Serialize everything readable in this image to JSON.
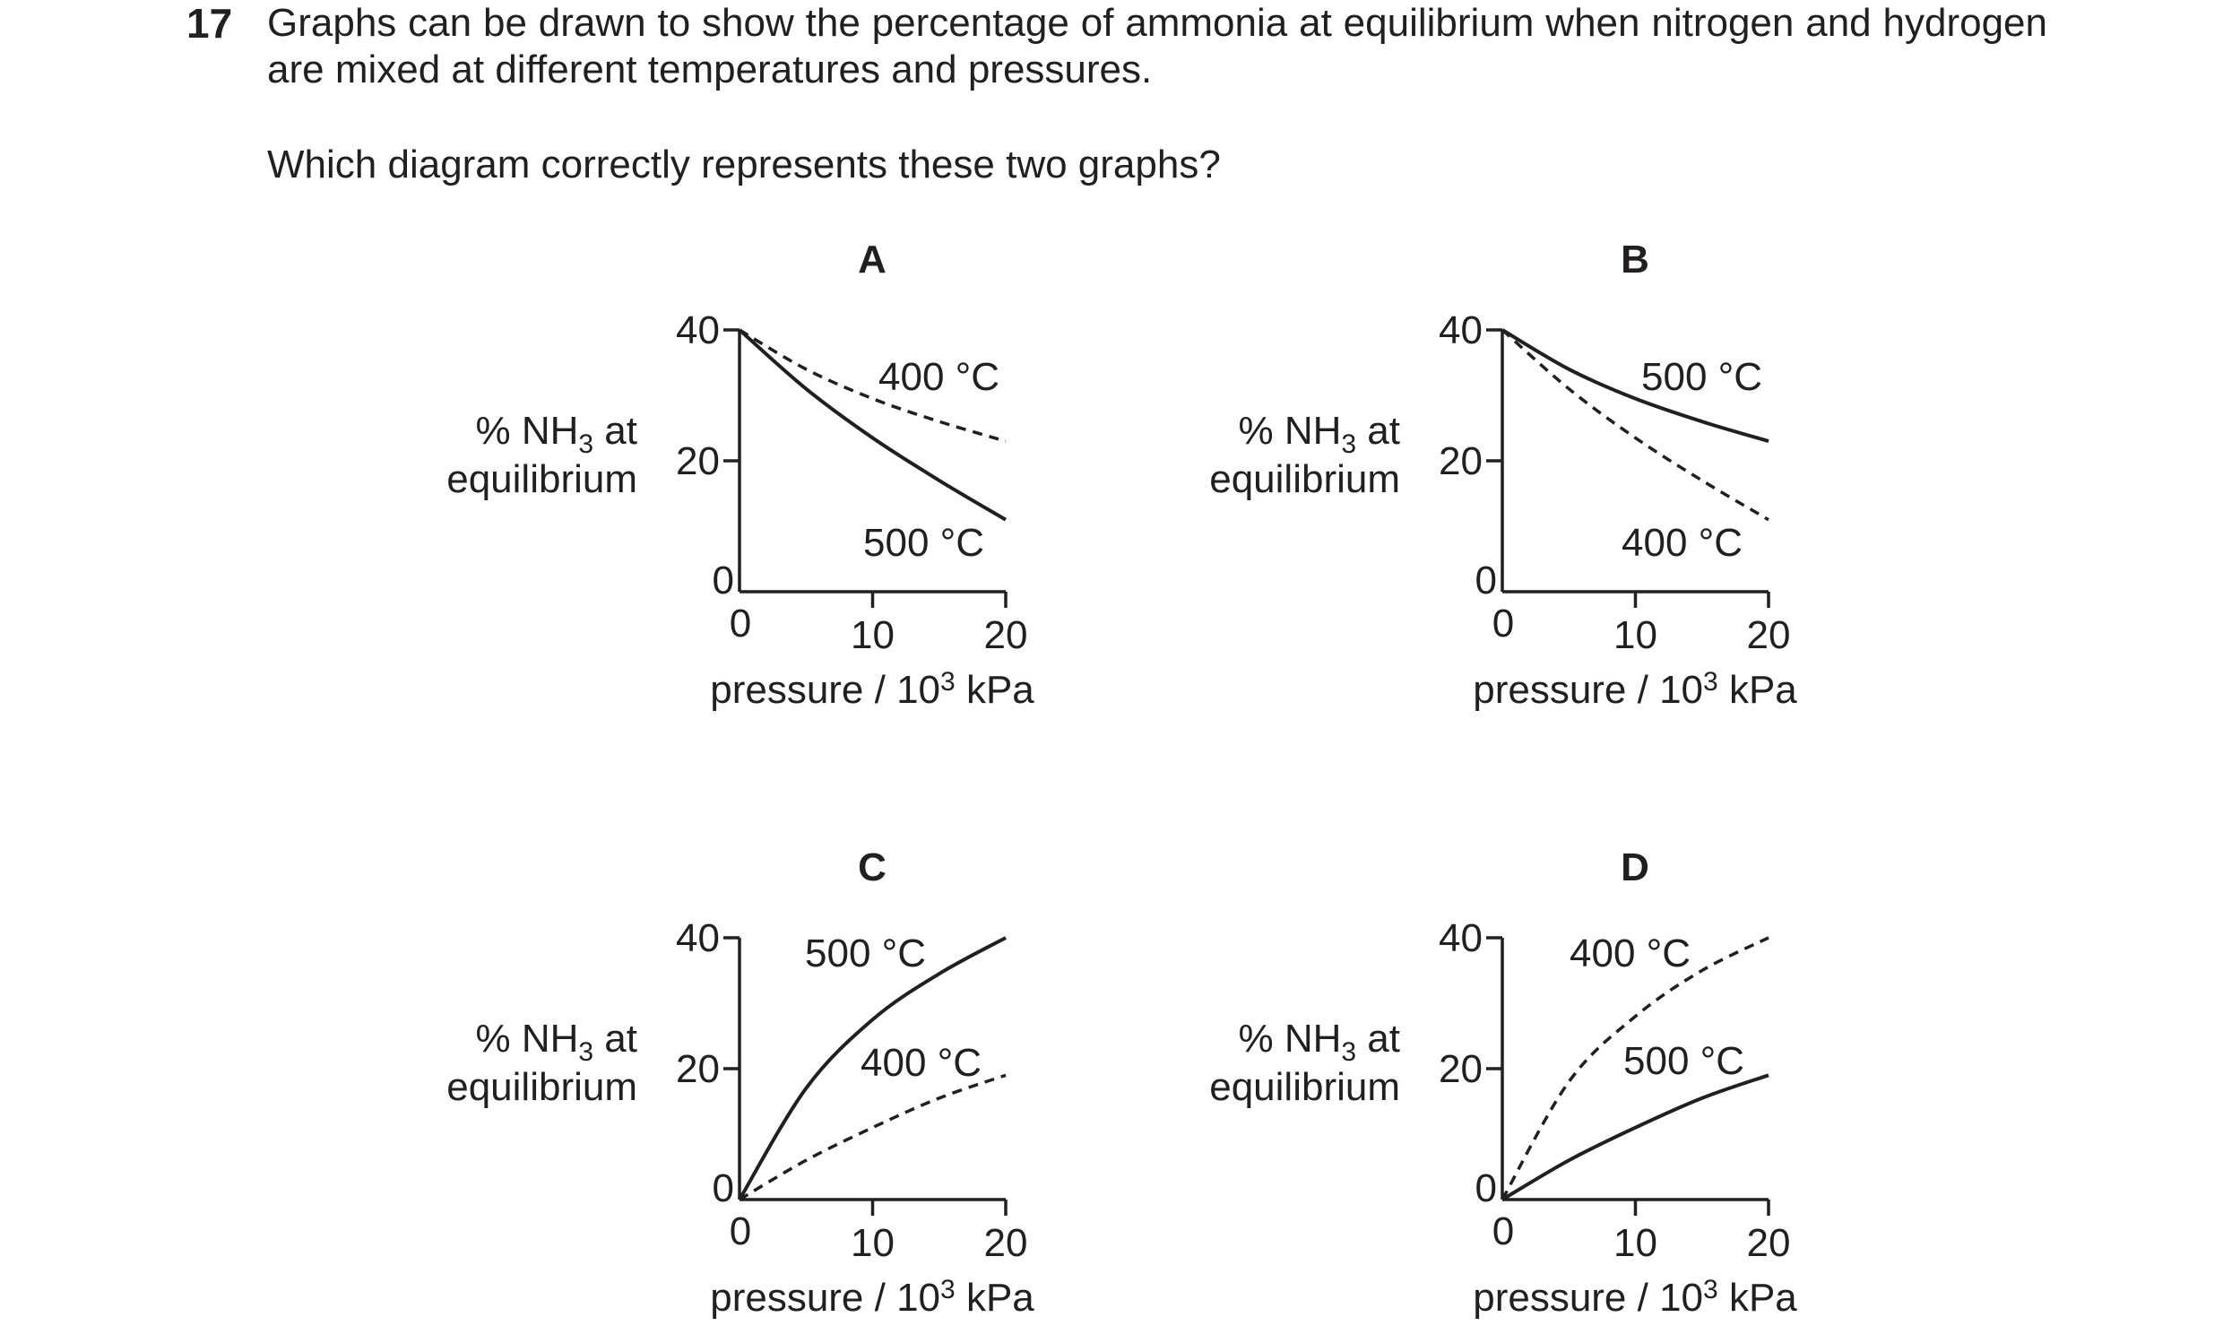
{
  "question": {
    "number": "17",
    "stem": "Graphs can be drawn to show the percentage of ammonia at equilibrium when nitrogen and hydrogen are mixed at different temperatures and pressures.",
    "prompt": "Which diagram correctly represents these two graphs?"
  },
  "axis_text": {
    "ylabel_line1_prefix": "% NH",
    "ylabel_line1_sub": "3",
    "ylabel_line1_suffix": " at",
    "ylabel_line2": "equilibrium",
    "xlabel_prefix": "pressure / 10",
    "xlabel_sup": "3",
    "xlabel_suffix": " kPa"
  },
  "chart_data": [
    {
      "type": "line",
      "option": "A",
      "xlabel": "pressure / 10³ kPa",
      "ylabel": "% NH₃ at equilibrium",
      "xlim": [
        0,
        20
      ],
      "ylim": [
        0,
        40
      ],
      "xticks": [
        "0",
        "10",
        "20"
      ],
      "yticks": [
        "0",
        "20",
        "40"
      ],
      "series": [
        {
          "name": "400 °C",
          "style": "dashed",
          "x": [
            0,
            5,
            10,
            15,
            20
          ],
          "y": [
            40,
            34,
            29.5,
            26,
            23
          ]
        },
        {
          "name": "500 °C",
          "style": "solid",
          "x": [
            0,
            5,
            10,
            15,
            20
          ],
          "y": [
            40,
            31,
            23.5,
            17,
            11
          ]
        }
      ]
    },
    {
      "type": "line",
      "option": "B",
      "xlabel": "pressure / 10³ kPa",
      "ylabel": "% NH₃ at equilibrium",
      "xlim": [
        0,
        20
      ],
      "ylim": [
        0,
        40
      ],
      "xticks": [
        "0",
        "10",
        "20"
      ],
      "yticks": [
        "0",
        "20",
        "40"
      ],
      "series": [
        {
          "name": "500 °C",
          "style": "solid",
          "x": [
            0,
            5,
            10,
            15,
            20
          ],
          "y": [
            40,
            34,
            29.5,
            26,
            23
          ]
        },
        {
          "name": "400 °C",
          "style": "dashed",
          "x": [
            0,
            5,
            10,
            15,
            20
          ],
          "y": [
            40,
            31,
            23.5,
            17,
            11
          ]
        }
      ]
    },
    {
      "type": "line",
      "option": "C",
      "xlabel": "pressure / 10³ kPa",
      "ylabel": "% NH₃ at equilibrium",
      "xlim": [
        0,
        20
      ],
      "ylim": [
        0,
        40
      ],
      "xticks": [
        "0",
        "10",
        "20"
      ],
      "yticks": [
        "0",
        "20",
        "40"
      ],
      "series": [
        {
          "name": "500 °C",
          "style": "solid",
          "x": [
            0,
            5,
            10,
            15,
            20
          ],
          "y": [
            0,
            17,
            27.5,
            34.5,
            40
          ]
        },
        {
          "name": "400 °C",
          "style": "dashed",
          "x": [
            0,
            5,
            10,
            15,
            20
          ],
          "y": [
            0,
            6,
            11,
            15.5,
            19
          ]
        }
      ]
    },
    {
      "type": "line",
      "option": "D",
      "xlabel": "pressure / 10³ kPa",
      "ylabel": "% NH₃ at equilibrium",
      "xlim": [
        0,
        20
      ],
      "ylim": [
        0,
        40
      ],
      "xticks": [
        "0",
        "10",
        "20"
      ],
      "yticks": [
        "0",
        "20",
        "40"
      ],
      "series": [
        {
          "name": "400 °C",
          "style": "dashed",
          "x": [
            0,
            5,
            10,
            15,
            20
          ],
          "y": [
            0,
            18,
            28,
            35,
            40
          ]
        },
        {
          "name": "500 °C",
          "style": "solid",
          "x": [
            0,
            5,
            10,
            15,
            20
          ],
          "y": [
            0,
            6,
            11,
            15.5,
            19
          ]
        }
      ]
    }
  ]
}
